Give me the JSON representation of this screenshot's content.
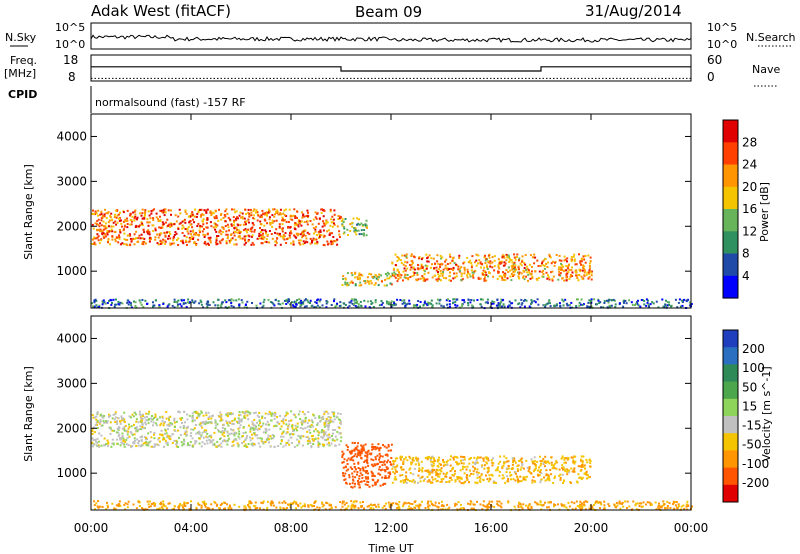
{
  "header": {
    "radar": "Adak West (fitACF)",
    "beam": "Beam 09",
    "date": "31/Aug/2014"
  },
  "labels": {
    "nsky": "N.Sky",
    "nsearch": "N.Search",
    "freq_line1": "Freq.",
    "freq_line2": "[MHz]",
    "nave": "Nave",
    "cpid": "CPID",
    "cpid_value": "normalsound (fast) -157 RF"
  },
  "noise_panel": {
    "left_ticks": [
      "10^5",
      "10^0"
    ],
    "right_ticks": [
      "10^5",
      "10^0"
    ]
  },
  "freq_panel": {
    "left_ticks": [
      "18",
      "8"
    ],
    "right_ticks": [
      "60",
      "0"
    ],
    "freq_mhz": [
      [
        0,
        14.0
      ],
      [
        10.0,
        14.0
      ],
      [
        10.0,
        11.5
      ],
      [
        18.0,
        11.5
      ],
      [
        18.0,
        14.0
      ],
      [
        24.0,
        14.0
      ]
    ],
    "nave_level": 6
  },
  "chart_data": [
    {
      "type": "heatmap",
      "title": "",
      "ylabel": "Slant Range [km]",
      "xlabel": "",
      "colorbar_label": "Power [dB]",
      "colorbar_ticks": [
        "28",
        "24",
        "20",
        "16",
        "12",
        "8",
        "4"
      ],
      "ylim": [
        180,
        4500
      ],
      "xlim": [
        0,
        24
      ],
      "yticks": [
        "4000",
        "3000",
        "2000",
        "1000"
      ],
      "colors": [
        "#0000ff",
        "#1f4aa8",
        "#2f9060",
        "#67b45a",
        "#f4c400",
        "#ff9500",
        "#ff4000",
        "#e00000"
      ],
      "echo_regions": [
        {
          "x": [
            0,
            10
          ],
          "range_km": [
            1600,
            2400
          ],
          "power_db": 24
        },
        {
          "x": [
            10,
            11
          ],
          "range_km": [
            1800,
            2200
          ],
          "power_db": 14
        },
        {
          "x": [
            10,
            12
          ],
          "range_km": [
            700,
            1000
          ],
          "power_db": 18
        },
        {
          "x": [
            12,
            20
          ],
          "range_km": [
            800,
            1400
          ],
          "power_db": 22
        },
        {
          "x": [
            0,
            24
          ],
          "range_km": [
            200,
            400
          ],
          "power_db": 8
        }
      ]
    },
    {
      "type": "heatmap",
      "title": "",
      "ylabel": "Slant Range [km]",
      "xlabel": "Time UT",
      "colorbar_label": "Velocity [m s^-1]",
      "colorbar_ticks": [
        "200",
        "100",
        "50",
        "15",
        "-15",
        "-50",
        "-100",
        "-200"
      ],
      "ylim": [
        180,
        4500
      ],
      "xlim": [
        0,
        24
      ],
      "yticks": [
        "4000",
        "3000",
        "2000",
        "1000"
      ],
      "xticks": [
        "00:00",
        "04:00",
        "08:00",
        "12:00",
        "16:00",
        "20:00",
        "00:00"
      ],
      "colors": [
        "#1f3fbf",
        "#2a6fc0",
        "#2e8b57",
        "#4ca64c",
        "#8fd45a",
        "#c0c0c0",
        "#f5c400",
        "#ff9500",
        "#ff5500",
        "#e00000"
      ],
      "echo_regions": [
        {
          "x": [
            0,
            10
          ],
          "range_km": [
            1600,
            2400
          ],
          "velocity_ms": 0
        },
        {
          "x": [
            10,
            12
          ],
          "range_km": [
            700,
            1700
          ],
          "velocity_ms": -150
        },
        {
          "x": [
            12,
            20
          ],
          "range_km": [
            800,
            1400
          ],
          "velocity_ms": -40
        },
        {
          "x": [
            0,
            24
          ],
          "range_km": [
            200,
            400
          ],
          "velocity_ms": -60
        }
      ]
    }
  ]
}
